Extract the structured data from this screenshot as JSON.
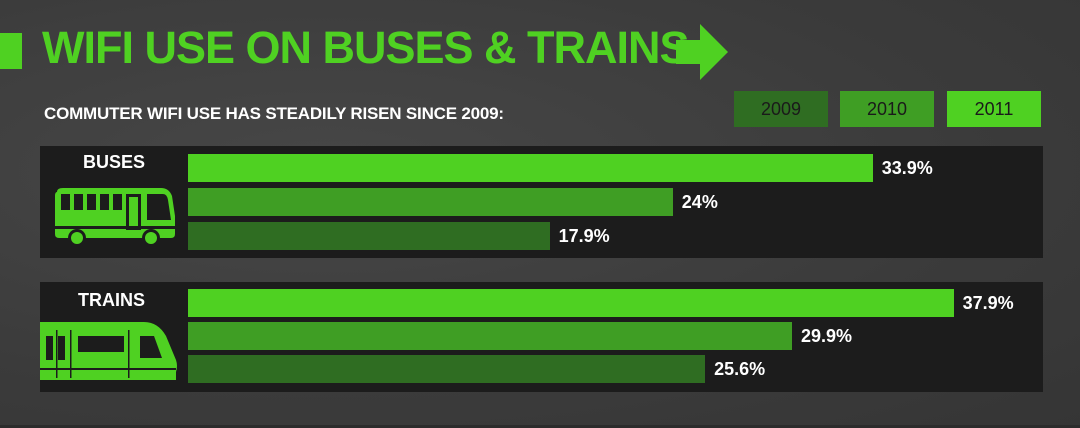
{
  "title": "WIFI USE ON BUSES & TRAINS",
  "subtitle": "COMMUTER WIFI USE HAS STEADILY RISEN SINCE 2009:",
  "colors": {
    "accent": "#4fd122",
    "y2011": "#4fd122",
    "y2010": "#3f9e24",
    "y2009": "#2f6d22"
  },
  "legend": [
    {
      "label": "2009",
      "color": "#2f6d22"
    },
    {
      "label": "2010",
      "color": "#3f9e24"
    },
    {
      "label": "2011",
      "color": "#4fd122"
    }
  ],
  "chart_data": {
    "type": "bar",
    "orientation": "horizontal",
    "unit": "%",
    "series_order": [
      "2011",
      "2010",
      "2009"
    ],
    "groups": [
      {
        "label": "BUSES",
        "icon": "bus-icon",
        "bars": [
          {
            "year": "2011",
            "value": 33.9,
            "label": "33.9%"
          },
          {
            "year": "2010",
            "value": 24,
            "label": "24%"
          },
          {
            "year": "2009",
            "value": 17.9,
            "label": "17.9%"
          }
        ]
      },
      {
        "label": "TRAINS",
        "icon": "train-icon",
        "bars": [
          {
            "year": "2011",
            "value": 37.9,
            "label": "37.9%"
          },
          {
            "year": "2010",
            "value": 29.9,
            "label": "29.9%"
          },
          {
            "year": "2009",
            "value": 25.6,
            "label": "25.6%"
          }
        ]
      }
    ]
  }
}
